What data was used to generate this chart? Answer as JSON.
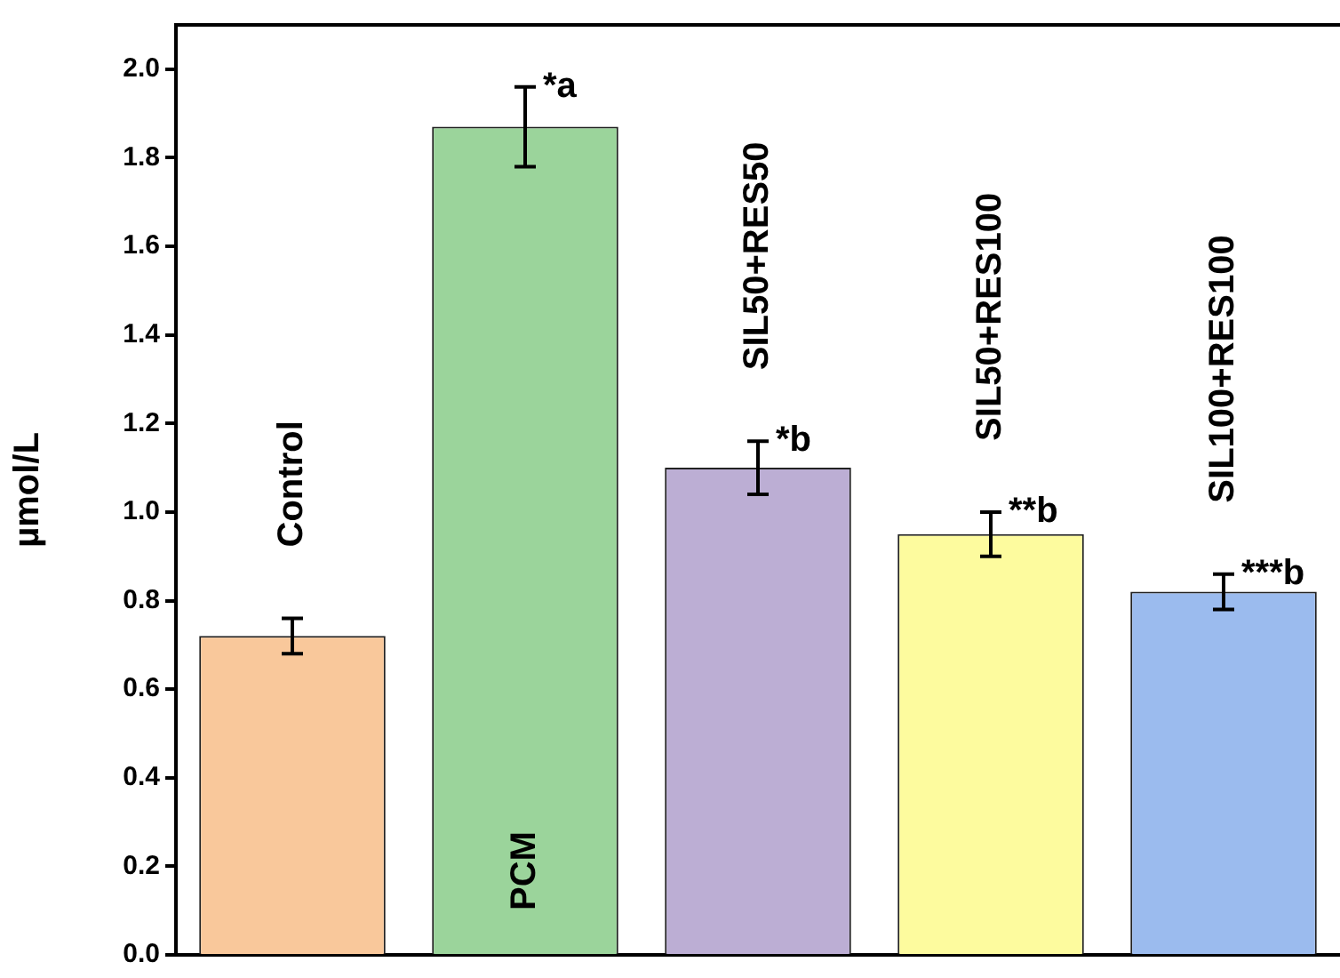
{
  "chart_data": {
    "type": "bar",
    "ylabel": "µmol/L",
    "categories": [
      "Control",
      "PCM",
      "SIL50+RES50",
      "SIL50+RES100",
      "SIL100+RES100"
    ],
    "values": [
      0.72,
      1.87,
      1.1,
      0.95,
      0.82
    ],
    "errors": [
      0.04,
      0.09,
      0.06,
      0.05,
      0.04
    ],
    "colors": [
      "#f9c89b",
      "#9bd49b",
      "#bcaed4",
      "#fdfb9e",
      "#9bbbee"
    ],
    "ylim": [
      0,
      2.1
    ],
    "yticks": [
      {
        "value": 0,
        "label": "0.0"
      },
      {
        "value": 0.2,
        "label": "0.2"
      },
      {
        "value": 0.4,
        "label": "0.4"
      },
      {
        "value": 0.6,
        "label": "0.6"
      },
      {
        "value": 0.8,
        "label": "0.8"
      },
      {
        "value": 1,
        "label": "1.0"
      },
      {
        "value": 1.2,
        "label": "1.2"
      },
      {
        "value": 1.4,
        "label": "1.4"
      },
      {
        "value": 1.6,
        "label": "1.6"
      },
      {
        "value": 1.8,
        "label": "1.8"
      },
      {
        "value": 2,
        "label": "2.0"
      }
    ],
    "tick_labels": "y",
    "legend": false,
    "annotations": [
      {
        "text": "*a",
        "x": "PCM",
        "y": 1.96
      },
      {
        "text": "*b",
        "x": "SIL50+RES50",
        "y": 1.16
      },
      {
        "text": "**b",
        "x": "SIL50+RES100",
        "y": 1.0
      },
      {
        "text": "***b",
        "x": "SIL100+RES100",
        "y": 0.86
      }
    ]
  }
}
